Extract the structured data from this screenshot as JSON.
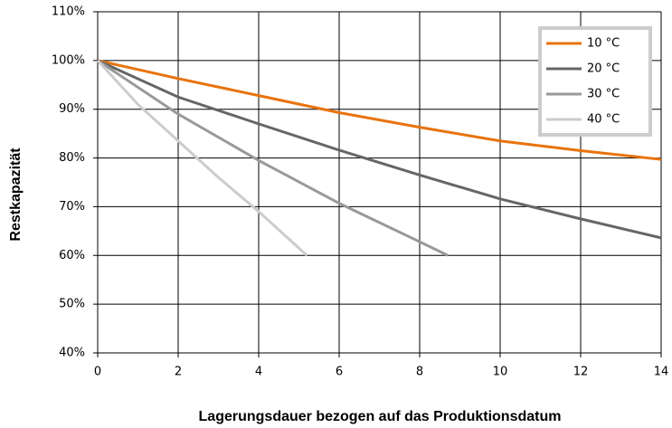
{
  "chart_data": {
    "type": "line",
    "xlabel": "Lagerungsdauer bezogen auf das Produktionsdatum",
    "ylabel": "Restkapazität",
    "xlim": [
      0,
      14
    ],
    "xticks": [
      0,
      2,
      4,
      6,
      8,
      10,
      12,
      14
    ],
    "ylim": [
      40,
      110
    ],
    "yticks": [
      {
        "value": 40,
        "label": "40%"
      },
      {
        "value": 50,
        "label": "50%"
      },
      {
        "value": 60,
        "label": "60%"
      },
      {
        "value": 70,
        "label": "70%"
      },
      {
        "value": 80,
        "label": "80%"
      },
      {
        "value": 90,
        "label": "90%"
      },
      {
        "value": 100,
        "label": "100%"
      },
      {
        "value": 110,
        "label": "110%"
      }
    ],
    "grid": true,
    "legend": "upper right",
    "series": [
      {
        "name": "10 °C",
        "color": "#e8730d",
        "x": [
          0,
          2,
          4,
          6,
          8,
          10,
          12,
          14
        ],
        "values": [
          100,
          96.3,
          92.8,
          89.3,
          86.3,
          83.5,
          81.5,
          79.7
        ]
      },
      {
        "name": "20 °C",
        "color": "#666666",
        "x": [
          0,
          2,
          4,
          6,
          8,
          10,
          12,
          14
        ],
        "values": [
          100,
          92.5,
          87,
          81.6,
          76.5,
          71.6,
          67.5,
          63.6
        ]
      },
      {
        "name": "30 °C",
        "color": "#999999",
        "x": [
          0,
          2,
          4,
          6,
          8,
          8.7
        ],
        "values": [
          100,
          89,
          79.5,
          70.7,
          62.8,
          60
        ]
      },
      {
        "name": "40 °C",
        "color": "#cccccc",
        "x": [
          0,
          1,
          2,
          3,
          4,
          5.2
        ],
        "values": [
          100,
          91,
          83.5,
          76,
          69,
          60
        ]
      }
    ]
  }
}
